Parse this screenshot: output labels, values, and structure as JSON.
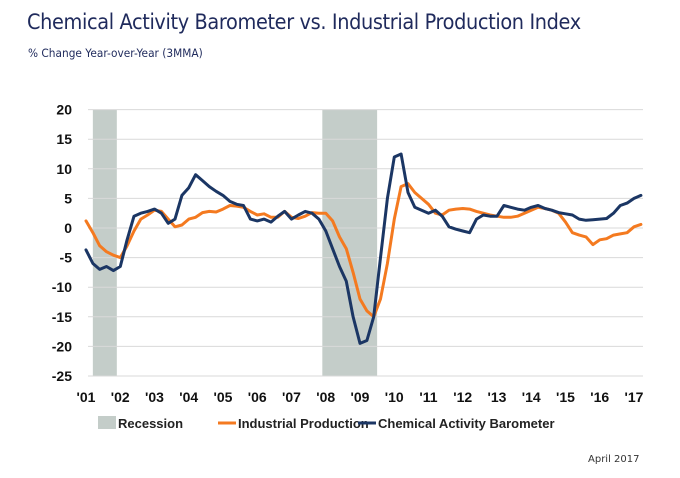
{
  "chart_data": {
    "type": "line",
    "title": "Chemical Activity Barometer vs. Industrial Production Index",
    "subtitle": "% Change Year-over-Year (3MMA)",
    "xlabel": "",
    "ylabel": "",
    "ylim": [
      -25,
      20
    ],
    "yticks": [
      20,
      15,
      10,
      5,
      0,
      -5,
      -10,
      -15,
      -20,
      -25
    ],
    "xlim": [
      2001,
      2017.3
    ],
    "xticks": [
      {
        "x": 2001,
        "label": "'01"
      },
      {
        "x": 2002,
        "label": "'02"
      },
      {
        "x": 2003,
        "label": "'03"
      },
      {
        "x": 2004,
        "label": "'04"
      },
      {
        "x": 2005,
        "label": "'05"
      },
      {
        "x": 2006,
        "label": "'06"
      },
      {
        "x": 2007,
        "label": "'07"
      },
      {
        "x": 2008,
        "label": "'08"
      },
      {
        "x": 2009,
        "label": "'09"
      },
      {
        "x": 2010,
        "label": "'10"
      },
      {
        "x": 2011,
        "label": "'11"
      },
      {
        "x": 2012,
        "label": "'12"
      },
      {
        "x": 2013,
        "label": "'13"
      },
      {
        "x": 2014,
        "label": "'14"
      },
      {
        "x": 2015,
        "label": "'15"
      },
      {
        "x": 2016,
        "label": "'16"
      },
      {
        "x": 2017,
        "label": "'17"
      }
    ],
    "grid": true,
    "legend_position": "bottom",
    "recessions": [
      {
        "name": "Recession",
        "start": 2001.2,
        "end": 2001.9
      },
      {
        "name": "Recession",
        "start": 2007.9,
        "end": 2009.5
      }
    ],
    "series": [
      {
        "name": "Industrial Production",
        "color": "#f47a20",
        "points": [
          [
            2001.0,
            1.2
          ],
          [
            2001.2,
            -0.8
          ],
          [
            2001.4,
            -3.0
          ],
          [
            2001.6,
            -4.0
          ],
          [
            2001.8,
            -4.6
          ],
          [
            2002.0,
            -5.0
          ],
          [
            2002.2,
            -3.0
          ],
          [
            2002.4,
            -0.5
          ],
          [
            2002.6,
            1.5
          ],
          [
            2002.8,
            2.2
          ],
          [
            2003.0,
            3.0
          ],
          [
            2003.2,
            2.8
          ],
          [
            2003.4,
            1.5
          ],
          [
            2003.6,
            0.2
          ],
          [
            2003.8,
            0.5
          ],
          [
            2004.0,
            1.5
          ],
          [
            2004.2,
            1.8
          ],
          [
            2004.4,
            2.6
          ],
          [
            2004.6,
            2.8
          ],
          [
            2004.8,
            2.7
          ],
          [
            2005.0,
            3.2
          ],
          [
            2005.2,
            3.8
          ],
          [
            2005.4,
            3.7
          ],
          [
            2005.6,
            3.5
          ],
          [
            2005.8,
            2.8
          ],
          [
            2006.0,
            2.2
          ],
          [
            2006.2,
            2.4
          ],
          [
            2006.4,
            1.8
          ],
          [
            2006.6,
            1.8
          ],
          [
            2006.8,
            2.8
          ],
          [
            2007.0,
            1.8
          ],
          [
            2007.2,
            1.6
          ],
          [
            2007.4,
            2.0
          ],
          [
            2007.6,
            2.6
          ],
          [
            2007.8,
            2.5
          ],
          [
            2008.0,
            2.5
          ],
          [
            2008.2,
            1.2
          ],
          [
            2008.4,
            -1.5
          ],
          [
            2008.6,
            -3.5
          ],
          [
            2008.8,
            -7.5
          ],
          [
            2009.0,
            -12.0
          ],
          [
            2009.2,
            -14.0
          ],
          [
            2009.4,
            -15.0
          ],
          [
            2009.6,
            -12.0
          ],
          [
            2009.8,
            -6.0
          ],
          [
            2010.0,
            1.5
          ],
          [
            2010.2,
            7.0
          ],
          [
            2010.4,
            7.5
          ],
          [
            2010.6,
            6.0
          ],
          [
            2010.8,
            5.0
          ],
          [
            2011.0,
            4.0
          ],
          [
            2011.2,
            2.5
          ],
          [
            2011.4,
            2.2
          ],
          [
            2011.6,
            3.0
          ],
          [
            2011.8,
            3.2
          ],
          [
            2012.0,
            3.3
          ],
          [
            2012.2,
            3.2
          ],
          [
            2012.4,
            2.8
          ],
          [
            2012.6,
            2.5
          ],
          [
            2012.8,
            2.2
          ],
          [
            2013.0,
            2.0
          ],
          [
            2013.2,
            1.8
          ],
          [
            2013.4,
            1.8
          ],
          [
            2013.6,
            2.0
          ],
          [
            2013.8,
            2.5
          ],
          [
            2014.0,
            3.0
          ],
          [
            2014.2,
            3.5
          ],
          [
            2014.4,
            3.3
          ],
          [
            2014.6,
            3.0
          ],
          [
            2014.8,
            2.5
          ],
          [
            2015.0,
            1.0
          ],
          [
            2015.2,
            -0.8
          ],
          [
            2015.4,
            -1.2
          ],
          [
            2015.6,
            -1.5
          ],
          [
            2015.8,
            -2.8
          ],
          [
            2016.0,
            -2.0
          ],
          [
            2016.2,
            -1.8
          ],
          [
            2016.4,
            -1.2
          ],
          [
            2016.6,
            -1.0
          ],
          [
            2016.8,
            -0.8
          ],
          [
            2017.0,
            0.2
          ],
          [
            2017.2,
            0.6
          ]
        ]
      },
      {
        "name": "Chemical Activity Barometer",
        "color": "#1b3664",
        "points": [
          [
            2001.0,
            -3.7
          ],
          [
            2001.2,
            -6.0
          ],
          [
            2001.4,
            -7.0
          ],
          [
            2001.6,
            -6.5
          ],
          [
            2001.8,
            -7.2
          ],
          [
            2002.0,
            -6.5
          ],
          [
            2002.2,
            -2.0
          ],
          [
            2002.4,
            2.0
          ],
          [
            2002.6,
            2.5
          ],
          [
            2002.8,
            2.8
          ],
          [
            2003.0,
            3.2
          ],
          [
            2003.2,
            2.5
          ],
          [
            2003.4,
            0.8
          ],
          [
            2003.6,
            1.5
          ],
          [
            2003.8,
            5.5
          ],
          [
            2004.0,
            6.8
          ],
          [
            2004.2,
            9.0
          ],
          [
            2004.4,
            8.0
          ],
          [
            2004.6,
            7.0
          ],
          [
            2004.8,
            6.2
          ],
          [
            2005.0,
            5.5
          ],
          [
            2005.2,
            4.5
          ],
          [
            2005.4,
            4.0
          ],
          [
            2005.6,
            3.8
          ],
          [
            2005.8,
            1.5
          ],
          [
            2006.0,
            1.2
          ],
          [
            2006.2,
            1.5
          ],
          [
            2006.4,
            1.0
          ],
          [
            2006.6,
            2.0
          ],
          [
            2006.8,
            2.8
          ],
          [
            2007.0,
            1.5
          ],
          [
            2007.2,
            2.2
          ],
          [
            2007.4,
            2.8
          ],
          [
            2007.6,
            2.5
          ],
          [
            2007.8,
            1.5
          ],
          [
            2008.0,
            -0.5
          ],
          [
            2008.2,
            -3.5
          ],
          [
            2008.4,
            -6.5
          ],
          [
            2008.6,
            -9.0
          ],
          [
            2008.8,
            -15.0
          ],
          [
            2009.0,
            -19.5
          ],
          [
            2009.2,
            -19.0
          ],
          [
            2009.4,
            -15.0
          ],
          [
            2009.6,
            -5.0
          ],
          [
            2009.8,
            5.0
          ],
          [
            2010.0,
            12.0
          ],
          [
            2010.2,
            12.5
          ],
          [
            2010.4,
            6.0
          ],
          [
            2010.6,
            3.5
          ],
          [
            2010.8,
            3.0
          ],
          [
            2011.0,
            2.5
          ],
          [
            2011.2,
            3.0
          ],
          [
            2011.4,
            2.0
          ],
          [
            2011.6,
            0.2
          ],
          [
            2011.8,
            -0.2
          ],
          [
            2012.0,
            -0.5
          ],
          [
            2012.2,
            -0.8
          ],
          [
            2012.4,
            1.5
          ],
          [
            2012.6,
            2.2
          ],
          [
            2012.8,
            2.0
          ],
          [
            2013.0,
            2.0
          ],
          [
            2013.2,
            3.8
          ],
          [
            2013.4,
            3.5
          ],
          [
            2013.6,
            3.2
          ],
          [
            2013.8,
            3.0
          ],
          [
            2014.0,
            3.5
          ],
          [
            2014.2,
            3.8
          ],
          [
            2014.4,
            3.3
          ],
          [
            2014.6,
            3.0
          ],
          [
            2014.8,
            2.6
          ],
          [
            2015.0,
            2.4
          ],
          [
            2015.2,
            2.2
          ],
          [
            2015.4,
            1.5
          ],
          [
            2015.6,
            1.3
          ],
          [
            2015.8,
            1.4
          ],
          [
            2016.0,
            1.5
          ],
          [
            2016.2,
            1.6
          ],
          [
            2016.4,
            2.5
          ],
          [
            2016.6,
            3.8
          ],
          [
            2016.8,
            4.2
          ],
          [
            2017.0,
            5.0
          ],
          [
            2017.2,
            5.5
          ]
        ]
      }
    ],
    "legend": [
      {
        "name": "Recession",
        "type": "box",
        "color": "#c4cdc9"
      },
      {
        "name": "Industrial Production",
        "type": "line",
        "color": "#f47a20"
      },
      {
        "name": "Chemical Activity Barometer",
        "type": "line",
        "color": "#1b3664"
      }
    ],
    "annotation": "April 2017"
  }
}
